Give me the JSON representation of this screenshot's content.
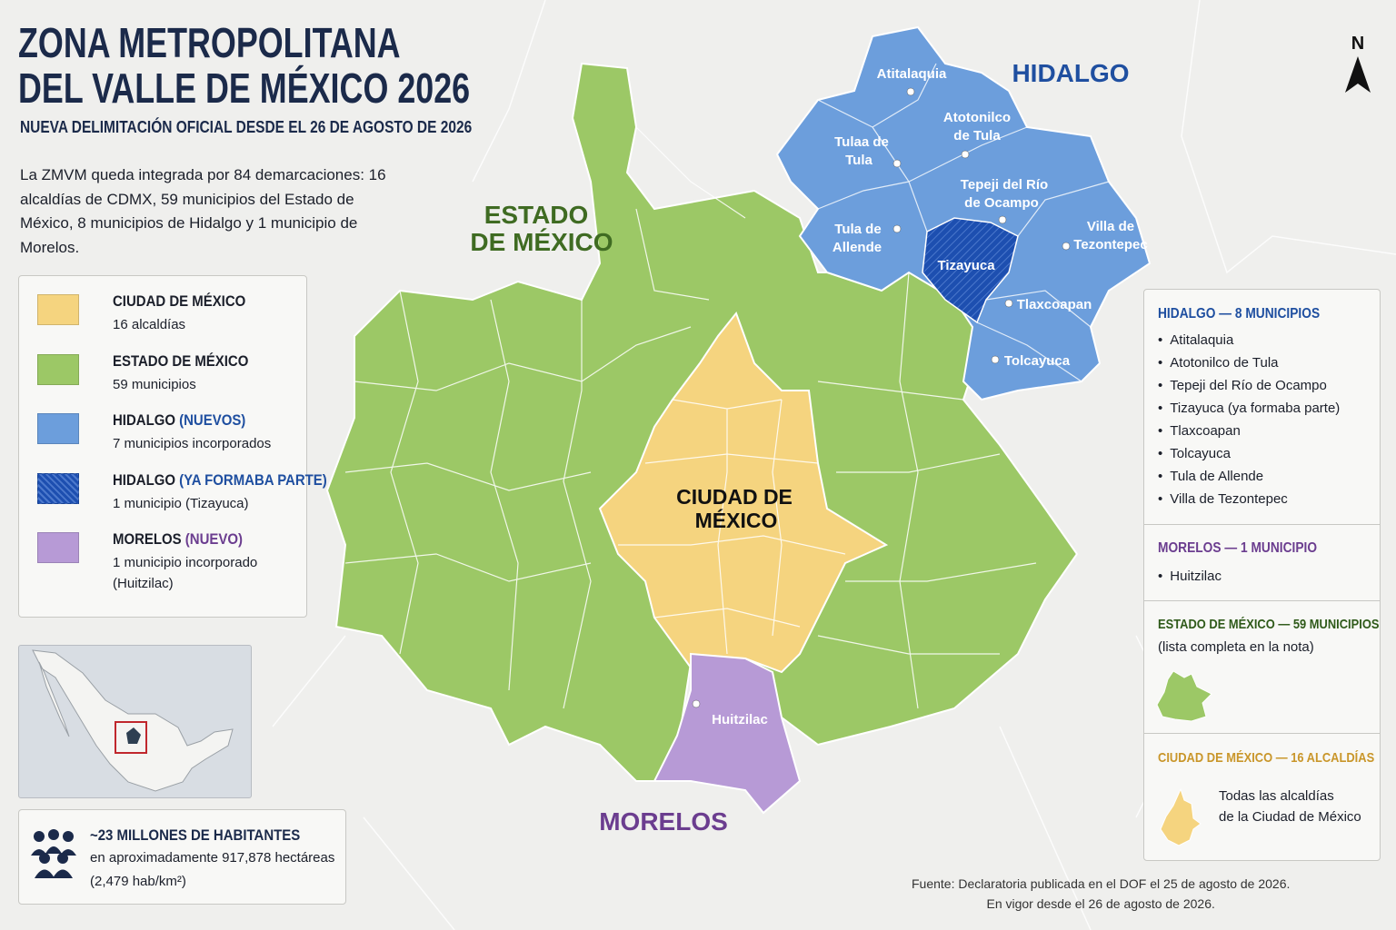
{
  "header": {
    "title_lines": [
      "ZONA METROPOLITANA",
      "DEL VALLE DE MÉXICO 2026"
    ],
    "subtitle": "NUEVA DELIMITACIÓN OFICIAL DESDE EL 26 DE AGOSTO DE 2026",
    "intro": "La ZMVM queda integrada por 84 demarcaciones: 16 alcaldías de CDMX, 59 municipios del Estado de México, 8 municipios de Hidalgo y 1 municipio de Morelos."
  },
  "legend": [
    {
      "name": "CIUDAD DE MÉXICO",
      "description": "16 alcaldías",
      "color": "#f5d47f"
    },
    {
      "name": "ESTADO DE MÉXICO",
      "description": "59 municipios",
      "color": "#9cc866"
    },
    {
      "name": "HIDALGO",
      "qualifier": "(NUEVOS)",
      "qualifier_color": "#1f4fa0",
      "description": "7 municipios incorporados",
      "color": "#6c9edc"
    },
    {
      "name": "HIDALGO",
      "qualifier": "(YA FORMABA PARTE)",
      "qualifier_color": "#1f4fa0",
      "description": "1 municipio (Tizayuca)",
      "color": "#1d4fb0",
      "pattern": "hatched"
    },
    {
      "name": "MORELOS",
      "qualifier": "(NUEVO)",
      "qualifier_color": "#6b3d8f",
      "description": "1 municipio incorporado (Huitzilac)",
      "color": "#b79ad6"
    }
  ],
  "map": {
    "regions": {
      "estado": [
        "ESTADO",
        "DE MÉXICO"
      ],
      "hidalgo": "HIDALGO",
      "morelos": "MORELOS",
      "cdmx": [
        "CIUDAD DE",
        "MÉXICO"
      ]
    },
    "municipalities": {
      "atitalaquia": [
        "Atitalaquia"
      ],
      "atotonilco": [
        "Atotonilco",
        "de Tula"
      ],
      "tula": [
        "Tulaa de",
        "Tula"
      ],
      "tepeji": [
        "Tepeji del Río",
        "de Ocampo"
      ],
      "allende": [
        "Tula de",
        "Allende"
      ],
      "villa": [
        "Villa de",
        "Tezontepec"
      ],
      "tizayuca": [
        "Tizayuca"
      ],
      "tlaxcoapan": [
        "Tlaxcoapan"
      ],
      "tolcayuca": [
        "Tolcayuca"
      ],
      "huitzilac": [
        "Huitzilac"
      ]
    },
    "north": "N"
  },
  "stats": {
    "heading": "~23 MILLONES DE HABITANTES",
    "lines": [
      "en aproximadamente 917,878 hectáreas",
      "(2,479 hab/km²)"
    ]
  },
  "panel": {
    "hidalgo": {
      "heading": "HIDALGO — 8 MUNICIPIOS",
      "items": [
        "Atitalaquia",
        "Atotonilco de Tula",
        "Tepeji del Río de Ocampo",
        "Tizayuca (ya formaba parte)",
        "Tlaxcoapan",
        "Tolcayuca",
        "Tula de Allende",
        "Villa de Tezontepec"
      ]
    },
    "morelos": {
      "heading": "MORELOS — 1 MUNICIPIO",
      "items": [
        "Huitzilac"
      ]
    },
    "estado": {
      "heading": "ESTADO DE MÉXICO — 59 MUNICIPIOS",
      "note": "(lista completa en la nota)"
    },
    "cdmx": {
      "heading": "CIUDAD DE MÉXICO — 16 ALCALDÍAS",
      "note_lines": [
        "Todas las alcaldías",
        "de la Ciudad de México"
      ]
    }
  },
  "source": [
    "Fuente: Declaratoria publicada en el DOF el 25 de agosto de 2026.",
    "En vigor desde el 26 de agosto de 2026."
  ]
}
